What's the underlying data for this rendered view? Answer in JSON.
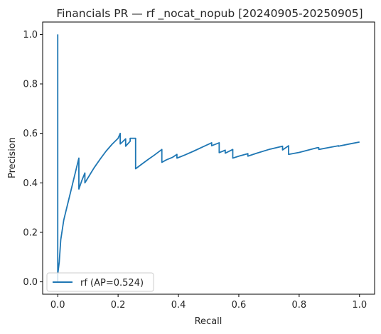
{
  "chart_data": {
    "type": "line",
    "title": "Financials PR — rf _nocat_nopub [20240905-20250905]",
    "xlabel": "Recall",
    "ylabel": "Precision",
    "xlim": [
      -0.05,
      1.05
    ],
    "ylim": [
      -0.05,
      1.05
    ],
    "xticks": [
      0.0,
      0.2,
      0.4,
      0.6,
      0.8,
      1.0
    ],
    "xtick_labels": [
      "0.0",
      "0.2",
      "0.4",
      "0.6",
      "0.8",
      "1.0"
    ],
    "yticks": [
      0.0,
      0.2,
      0.4,
      0.6,
      0.8,
      1.0
    ],
    "ytick_labels": [
      "0.0",
      "0.2",
      "0.4",
      "0.6",
      "0.8",
      "1.0"
    ],
    "grid": false,
    "legend_position": "lower-left",
    "series": [
      {
        "name": "rf (AP=0.524)",
        "color": "#1f77b4",
        "x": [
          0.0,
          0.0,
          0.0,
          0.005,
          0.01,
          0.02,
          0.03,
          0.04,
          0.05,
          0.06,
          0.07,
          0.07,
          0.08,
          0.09,
          0.09,
          0.1,
          0.12,
          0.14,
          0.16,
          0.18,
          0.2,
          0.207,
          0.207,
          0.225,
          0.225,
          0.24,
          0.24,
          0.258,
          0.258,
          0.28,
          0.3,
          0.32,
          0.345,
          0.345,
          0.36,
          0.38,
          0.395,
          0.395,
          0.42,
          0.45,
          0.48,
          0.51,
          0.51,
          0.535,
          0.535,
          0.555,
          0.555,
          0.58,
          0.58,
          0.6,
          0.63,
          0.63,
          0.66,
          0.7,
          0.745,
          0.745,
          0.765,
          0.765,
          0.8,
          0.86,
          0.865,
          0.865,
          0.9,
          0.93,
          0.93,
          0.97,
          1.0
        ],
        "y": [
          1.0,
          0.0,
          0.03,
          0.08,
          0.17,
          0.25,
          0.3,
          0.35,
          0.4,
          0.45,
          0.5,
          0.375,
          0.41,
          0.44,
          0.4,
          0.42,
          0.46,
          0.495,
          0.528,
          0.556,
          0.58,
          0.6,
          0.557,
          0.578,
          0.548,
          0.568,
          0.58,
          0.58,
          0.457,
          0.477,
          0.495,
          0.512,
          0.535,
          0.483,
          0.493,
          0.503,
          0.515,
          0.5,
          0.512,
          0.528,
          0.545,
          0.562,
          0.55,
          0.562,
          0.522,
          0.532,
          0.52,
          0.535,
          0.5,
          0.508,
          0.518,
          0.508,
          0.52,
          0.535,
          0.548,
          0.533,
          0.55,
          0.515,
          0.523,
          0.542,
          0.542,
          0.535,
          0.543,
          0.55,
          0.548,
          0.558,
          0.565
        ]
      }
    ]
  }
}
